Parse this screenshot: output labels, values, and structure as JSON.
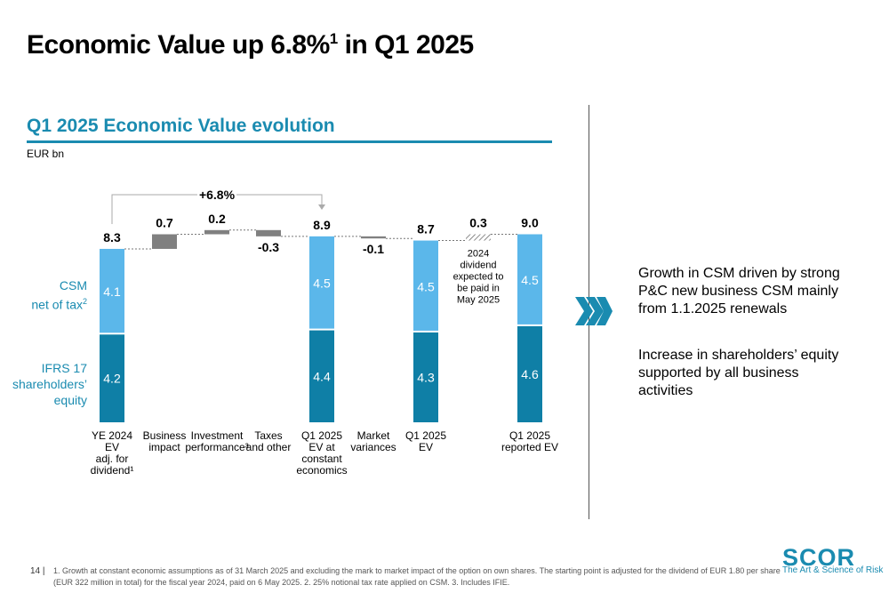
{
  "page": {
    "title": "Economic Value up 6.8%",
    "title_sup": "1",
    "title_suffix": " in Q1 2025",
    "page_number": "14 |",
    "footnote": "1. Growth at constant economic assumptions as of 31 March 2025 and excluding the mark to market impact of the option on own shares. The starting point is adjusted for the dividend of EUR 1.80 per share (EUR 322 million in total) for the fiscal year 2024, paid on 6 May 2025. 2. 25% notional tax rate applied on CSM. 3. Includes IFIE."
  },
  "brand": {
    "logo_text": "SCOR",
    "tagline": "The Art & Science of Risk",
    "color": "#1a8bb0"
  },
  "chart_data": {
    "type": "bar",
    "title": "Q1 2025 Economic Value evolution",
    "unit_label": "EUR bn",
    "growth_annotation": "+6.8%",
    "legend": {
      "csm_line1": "CSM",
      "csm_line2": "net of tax",
      "csm_sup": "2",
      "ifrs_line1": "IFRS 17",
      "ifrs_line2": "shareholders’",
      "ifrs_line3": "equity"
    },
    "colors": {
      "csm": "#5bb7ea",
      "ifrs": "#0f7fa6",
      "delta": "#808080"
    },
    "bars": [
      {
        "kind": "stack",
        "label": [
          "YE 2024",
          "EV",
          "adj. for",
          "dividend¹"
        ],
        "total": 8.3,
        "ifrs": 4.2,
        "csm": 4.1,
        "total_label": "8.3",
        "ifrs_label": "4.2",
        "csm_label": "4.1"
      },
      {
        "kind": "delta",
        "label": [
          "Business",
          "impact"
        ],
        "value": 0.7,
        "value_label": "0.7"
      },
      {
        "kind": "delta",
        "label": [
          "Investment",
          "performance³"
        ],
        "value": 0.2,
        "value_label": "0.2"
      },
      {
        "kind": "delta",
        "label": [
          "Taxes",
          "and other"
        ],
        "value": -0.3,
        "value_label": "-0.3"
      },
      {
        "kind": "stack",
        "label": [
          "Q1 2025",
          "EV at",
          "constant",
          "economics"
        ],
        "total": 8.9,
        "ifrs": 4.4,
        "csm": 4.5,
        "total_label": "8.9",
        "ifrs_label": "4.4",
        "csm_label": "4.5"
      },
      {
        "kind": "delta",
        "label": [
          "Market",
          "variances"
        ],
        "value": -0.1,
        "value_label": "-0.1"
      },
      {
        "kind": "stack",
        "label": [
          "Q1 2025",
          "EV"
        ],
        "total": 8.7,
        "ifrs": 4.3,
        "csm": 4.5,
        "total_label": "8.7",
        "ifrs_label": "4.3",
        "csm_label": "4.5"
      },
      {
        "kind": "hatched",
        "label": [],
        "value": 0.3,
        "value_label": "0.3",
        "note": [
          "2024",
          "dividend",
          "expected to",
          "be paid in",
          "May 2025"
        ]
      },
      {
        "kind": "stack",
        "label": [
          "Q1 2025",
          "reported EV"
        ],
        "total": 9.0,
        "ifrs": 4.6,
        "csm": 4.5,
        "total_label": "9.0",
        "ifrs_label": "4.6",
        "csm_label": "4.5"
      }
    ]
  },
  "notes": {
    "items": [
      "Growth in CSM driven by strong P&C new business CSM mainly from 1.1.2025 renewals",
      "Increase in shareholders’ equity supported by all business activities"
    ]
  }
}
